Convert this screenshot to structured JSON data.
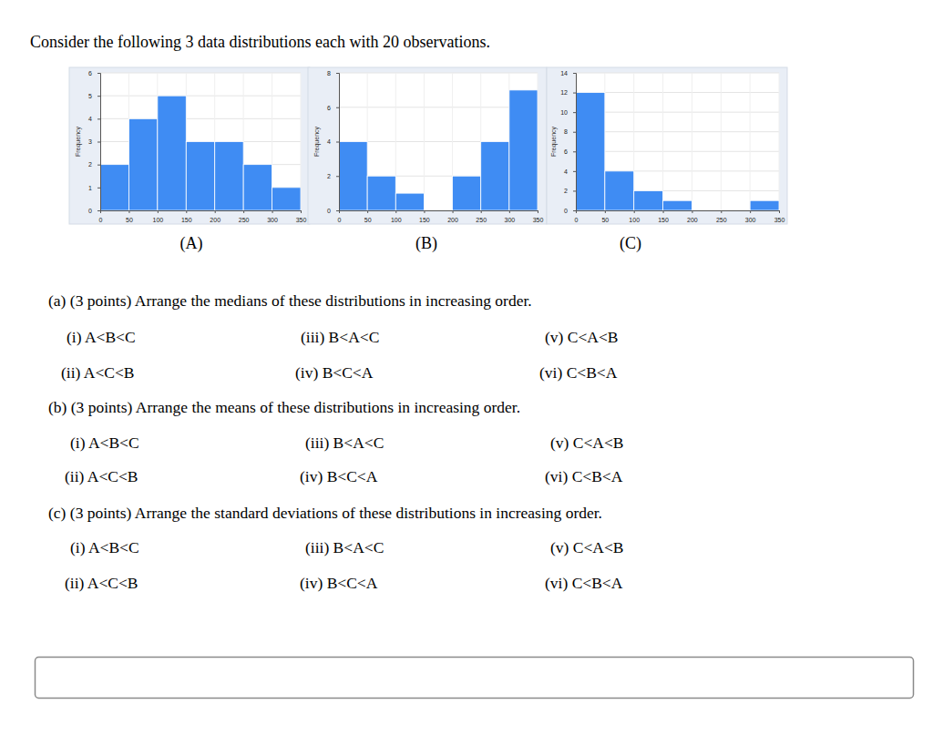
{
  "intro": "Consider the following 3 data distributions each with 20 observations.",
  "chart_data": [
    {
      "type": "histogram",
      "caption": "(A)",
      "ylabel": "Frequency",
      "color": "#3f8cf3",
      "grid": true,
      "bins": [
        0,
        50,
        100,
        150,
        200,
        250,
        300,
        350
      ],
      "counts": [
        2,
        4,
        5,
        3,
        3,
        2,
        1
      ],
      "xlim": [
        0,
        350
      ],
      "xticks": [
        0,
        50,
        100,
        150,
        200,
        250,
        300,
        350
      ],
      "ylim": [
        0,
        6
      ],
      "yticks": [
        0,
        1,
        2,
        3,
        4,
        5,
        6
      ]
    },
    {
      "type": "histogram",
      "caption": "(B)",
      "ylabel": "Frequency",
      "color": "#3f8cf3",
      "grid": true,
      "bins": [
        0,
        50,
        100,
        150,
        200,
        250,
        300,
        350
      ],
      "counts": [
        4,
        2,
        1,
        0,
        2,
        4,
        7
      ],
      "xlim": [
        0,
        350
      ],
      "xticks": [
        0,
        50,
        100,
        150,
        200,
        250,
        300,
        350
      ],
      "ylim": [
        0,
        8
      ],
      "yticks": [
        0,
        2,
        4,
        6,
        8
      ]
    },
    {
      "type": "histogram",
      "caption": "(C)",
      "ylabel": "Frequency",
      "color": "#3f8cf3",
      "grid": true,
      "bins": [
        0,
        50,
        100,
        150,
        200,
        250,
        300,
        350
      ],
      "counts": [
        12,
        4,
        2,
        1,
        0,
        0,
        1
      ],
      "xlim": [
        0,
        350
      ],
      "xticks": [
        0,
        50,
        100,
        150,
        200,
        250,
        300,
        350
      ],
      "ylim": [
        0,
        14
      ],
      "yticks": [
        0,
        2,
        4,
        6,
        8,
        10,
        12,
        14
      ]
    }
  ],
  "questions": [
    {
      "text": "(a) (3 points) Arrange the medians of these distributions in increasing order.",
      "options": [
        "(i) A<B<C",
        "(ii) A<C<B",
        "(iii) B<A<C",
        "(iv) B<C<A",
        "(v) C<A<B",
        "(vi) C<B<A"
      ]
    },
    {
      "text": "(b) (3 points) Arrange the means of these distributions in increasing order.",
      "options": [
        "(i) A<B<C",
        "(ii) A<C<B",
        "(iii) B<A<C",
        "(iv) B<C<A",
        "(v) C<A<B",
        "(vi) C<B<A"
      ]
    },
    {
      "text": "(c) (3 points) Arrange the standard deviations of these distributions in increasing order.",
      "options": [
        "(i) A<B<C",
        "(ii) A<C<B",
        "(iii) B<A<C",
        "(iv) B<C<A",
        "(v) C<A<B",
        "(vi) C<B<A"
      ]
    }
  ]
}
